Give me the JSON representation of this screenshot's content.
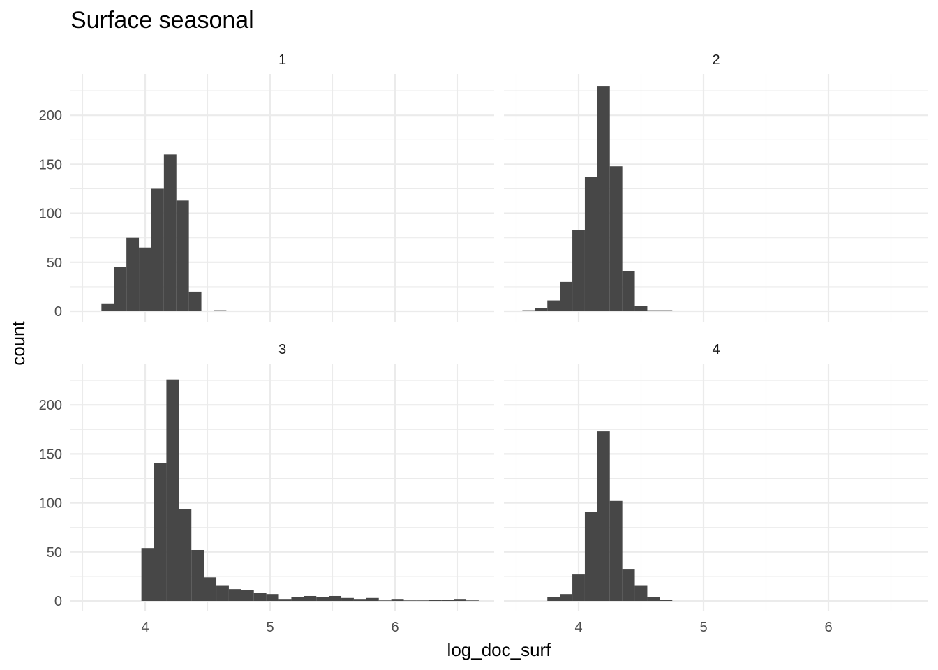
{
  "chart_data": {
    "type": "bar",
    "title": "Surface seasonal",
    "xlabel": "log_doc_surf",
    "ylabel": "count",
    "xlim": [
      3.5,
      6.8
    ],
    "ylim": [
      0,
      230
    ],
    "x_ticks": [
      4,
      5,
      6
    ],
    "y_ticks": [
      0,
      50,
      100,
      150,
      200
    ],
    "grid": true,
    "layout": "facet_wrap 2x2",
    "bar_color": "#474747",
    "panels": [
      {
        "label": "1",
        "bin_width": 0.1,
        "bins": [
          {
            "x0": 3.65,
            "count": 8
          },
          {
            "x0": 3.75,
            "count": 45
          },
          {
            "x0": 3.85,
            "count": 75
          },
          {
            "x0": 3.95,
            "count": 65
          },
          {
            "x0": 4.05,
            "count": 125
          },
          {
            "x0": 4.15,
            "count": 160
          },
          {
            "x0": 4.25,
            "count": 113
          },
          {
            "x0": 4.35,
            "count": 20
          },
          {
            "x0": 4.55,
            "count": 1
          }
        ]
      },
      {
        "label": "2",
        "bin_width": 0.1,
        "bins": [
          {
            "x0": 3.55,
            "count": 1
          },
          {
            "x0": 3.65,
            "count": 3
          },
          {
            "x0": 3.75,
            "count": 11
          },
          {
            "x0": 3.85,
            "count": 30
          },
          {
            "x0": 3.95,
            "count": 83
          },
          {
            "x0": 4.05,
            "count": 137
          },
          {
            "x0": 4.15,
            "count": 230
          },
          {
            "x0": 4.25,
            "count": 148
          },
          {
            "x0": 4.35,
            "count": 41
          },
          {
            "x0": 4.45,
            "count": 5
          },
          {
            "x0": 4.55,
            "count": 1
          },
          {
            "x0": 4.65,
            "count": 1
          },
          {
            "x0": 4.75,
            "count": 0.5
          },
          {
            "x0": 5.1,
            "count": 0.5
          },
          {
            "x0": 5.5,
            "count": 0.5
          }
        ]
      },
      {
        "label": "3",
        "bin_width": 0.1,
        "bins": [
          {
            "x0": 3.97,
            "count": 54
          },
          {
            "x0": 4.07,
            "count": 141
          },
          {
            "x0": 4.17,
            "count": 226
          },
          {
            "x0": 4.27,
            "count": 94
          },
          {
            "x0": 4.37,
            "count": 52
          },
          {
            "x0": 4.47,
            "count": 24
          },
          {
            "x0": 4.57,
            "count": 16
          },
          {
            "x0": 4.67,
            "count": 12
          },
          {
            "x0": 4.77,
            "count": 11
          },
          {
            "x0": 4.87,
            "count": 8
          },
          {
            "x0": 4.97,
            "count": 7
          },
          {
            "x0": 5.07,
            "count": 2
          },
          {
            "x0": 5.17,
            "count": 4
          },
          {
            "x0": 5.27,
            "count": 5
          },
          {
            "x0": 5.37,
            "count": 4
          },
          {
            "x0": 5.47,
            "count": 5
          },
          {
            "x0": 5.57,
            "count": 3
          },
          {
            "x0": 5.67,
            "count": 2
          },
          {
            "x0": 5.77,
            "count": 3
          },
          {
            "x0": 5.87,
            "count": 0.5
          },
          {
            "x0": 5.97,
            "count": 2
          },
          {
            "x0": 6.07,
            "count": 0.5
          },
          {
            "x0": 6.17,
            "count": 0.5
          },
          {
            "x0": 6.27,
            "count": 1
          },
          {
            "x0": 6.37,
            "count": 1
          },
          {
            "x0": 6.47,
            "count": 2
          },
          {
            "x0": 6.57,
            "count": 0.5
          }
        ]
      },
      {
        "label": "4",
        "bin_width": 0.1,
        "bins": [
          {
            "x0": 3.75,
            "count": 4
          },
          {
            "x0": 3.85,
            "count": 7
          },
          {
            "x0": 3.95,
            "count": 27
          },
          {
            "x0": 4.05,
            "count": 91
          },
          {
            "x0": 4.15,
            "count": 173
          },
          {
            "x0": 4.25,
            "count": 102
          },
          {
            "x0": 4.35,
            "count": 32
          },
          {
            "x0": 4.45,
            "count": 16
          },
          {
            "x0": 4.55,
            "count": 4
          },
          {
            "x0": 4.65,
            "count": 1
          }
        ]
      }
    ]
  }
}
